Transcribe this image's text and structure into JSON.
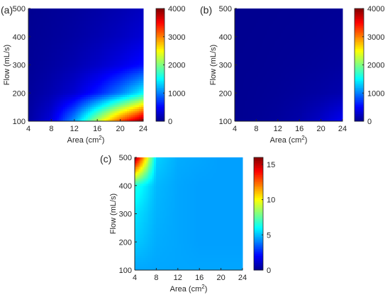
{
  "colors": {
    "jet": [
      "#00008f",
      "#0000ff",
      "#0080ff",
      "#00ffff",
      "#80ff80",
      "#ffff00",
      "#ff8000",
      "#ff0000",
      "#800000"
    ],
    "axis": "#262626"
  },
  "chart_data": [
    {
      "type": "heatmap",
      "panel_label": "(a)",
      "xlabel": "Area (cm",
      "xlabel_sup": "2",
      "xlabel_end": ")",
      "ylabel": "Flow (mL/s)",
      "xlim": [
        4,
        24
      ],
      "ylim": [
        100,
        500
      ],
      "xticks": [
        4,
        8,
        12,
        16,
        20,
        24
      ],
      "yticks": [
        100,
        200,
        300,
        400,
        500
      ],
      "clim": [
        0,
        4000
      ],
      "cticks": [
        0,
        1000,
        2000,
        3000,
        4000
      ],
      "x": [
        4,
        8,
        12,
        16,
        20,
        24
      ],
      "y": [
        100,
        200,
        300,
        400,
        500
      ],
      "z": [
        [
          80,
          350,
          1100,
          2200,
          3200,
          4000
        ],
        [
          50,
          150,
          300,
          600,
          1000,
          1500
        ],
        [
          30,
          80,
          150,
          250,
          380,
          550
        ],
        [
          20,
          50,
          90,
          150,
          220,
          320
        ],
        [
          10,
          35,
          60,
          100,
          150,
          220
        ]
      ],
      "grid": false
    },
    {
      "type": "heatmap",
      "panel_label": "(b)",
      "xlabel": "Area (cm",
      "xlabel_sup": "2",
      "xlabel_end": ")",
      "ylabel": "Flow (mL/s)",
      "xlim": [
        4,
        24
      ],
      "ylim": [
        100,
        500
      ],
      "xticks": [
        4,
        8,
        12,
        16,
        20,
        24
      ],
      "yticks": [
        100,
        200,
        300,
        400,
        500
      ],
      "clim": [
        0,
        4000
      ],
      "cticks": [
        0,
        1000,
        2000,
        3000,
        4000
      ],
      "x": [
        4,
        8,
        12,
        16,
        20,
        24
      ],
      "y": [
        100,
        200,
        300,
        400,
        500
      ],
      "z": [
        [
          10,
          30,
          60,
          120,
          250,
          450
        ],
        [
          8,
          20,
          35,
          60,
          90,
          140
        ],
        [
          6,
          12,
          22,
          35,
          50,
          70
        ],
        [
          4,
          8,
          15,
          22,
          32,
          45
        ],
        [
          2,
          5,
          10,
          15,
          22,
          30
        ]
      ],
      "grid": false
    },
    {
      "type": "heatmap",
      "panel_label": "(c)",
      "xlabel": "Area (cm",
      "xlabel_sup": "2",
      "xlabel_end": ")",
      "ylabel": "Flow (mL/s)",
      "xlim": [
        4,
        24
      ],
      "ylim": [
        100,
        500
      ],
      "xticks": [
        4,
        8,
        12,
        16,
        20,
        24
      ],
      "yticks": [
        100,
        200,
        300,
        400,
        500
      ],
      "clim": [
        0,
        16
      ],
      "cticks": [
        0,
        5,
        10,
        15
      ],
      "x": [
        4,
        8,
        12,
        16,
        20,
        24
      ],
      "y": [
        100,
        200,
        300,
        400,
        500
      ],
      "z": [
        [
          4.6,
          4.6,
          4.6,
          4.6,
          4.6,
          4.6
        ],
        [
          5.2,
          4.7,
          4.6,
          4.5,
          4.5,
          4.5
        ],
        [
          5.6,
          4.8,
          4.6,
          4.5,
          4.5,
          4.5
        ],
        [
          6.5,
          4.9,
          4.6,
          4.5,
          4.5,
          4.5
        ],
        [
          16,
          5.3,
          4.7,
          4.6,
          4.5,
          4.5
        ]
      ],
      "grid": false
    }
  ]
}
